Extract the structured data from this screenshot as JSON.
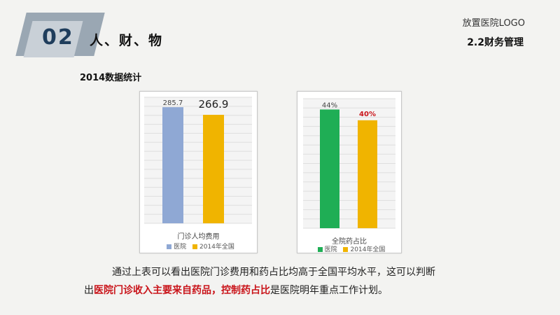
{
  "header": {
    "section_number": "02",
    "section_title": "人、财、物",
    "logo": "放置医院LOGO",
    "subsection": "2.2财务管理"
  },
  "stats_title": "2014数据统计",
  "legend_labels": [
    "医院",
    "2014年全国"
  ],
  "colors": {
    "hospital_bar_chart1": "#8fa8d4",
    "national_bar_chart1": "#f0b400",
    "hospital_bar_chart2": "#1fae55",
    "national_bar_chart2": "#f0b400",
    "highlight_text": "#c9141a"
  },
  "chart_data": [
    {
      "type": "bar",
      "title": "",
      "xlabel": "门诊人均费用",
      "ylabel": "",
      "categories": [
        "门诊人均费用"
      ],
      "series": [
        {
          "name": "医院",
          "values": [
            285.7
          ],
          "labels": [
            "285.7"
          ]
        },
        {
          "name": "2014年全国",
          "values": [
            266.9
          ],
          "labels": [
            "266.9"
          ]
        }
      ],
      "grid": true,
      "legend": "bottom"
    },
    {
      "type": "bar",
      "title": "",
      "xlabel": "全院药占比",
      "ylabel": "",
      "categories": [
        "全院药占比"
      ],
      "series": [
        {
          "name": "医院",
          "values": [
            44
          ],
          "labels": [
            "44%"
          ]
        },
        {
          "name": "2014年全国",
          "values": [
            40
          ],
          "labels": [
            "40%"
          ]
        }
      ],
      "grid": true,
      "legend": "bottom"
    }
  ],
  "paragraph": {
    "line1": "通过上表可以看出医院门诊费用和药占比均高于全国平均水平，这可以判断",
    "line2_prefix": "出",
    "line2_highlight1": "医院门诊收入主要来自药品",
    "line2_sep": "，",
    "line2_highlight2": "控制药占比",
    "line2_suffix": "是医院明年重点工作计划。"
  }
}
